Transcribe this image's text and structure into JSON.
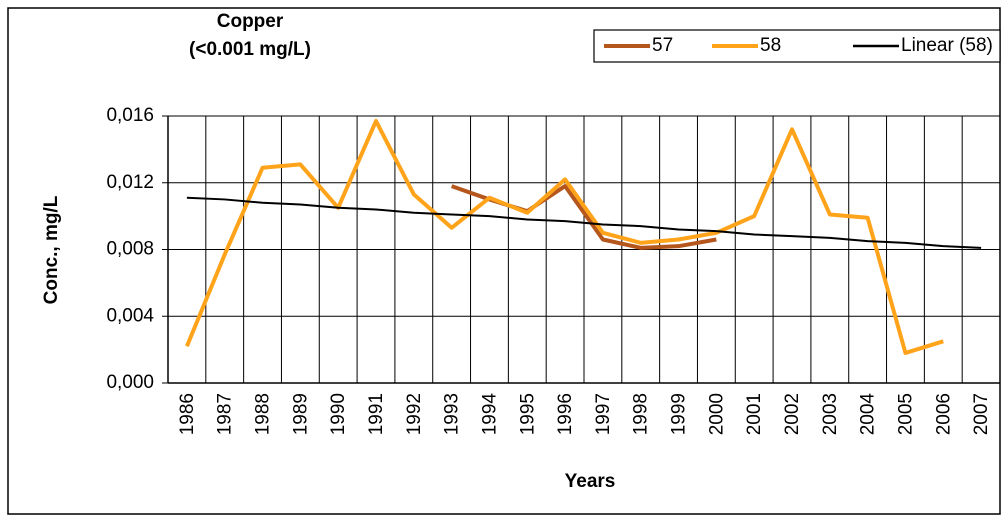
{
  "chart_data": {
    "type": "line",
    "title": "Copper",
    "subtitle": "(<0.001 mg/L)",
    "x_label": "Years",
    "y_label": "Conc., mg/L",
    "categories": [
      "1986",
      "1987",
      "1988",
      "1989",
      "1990",
      "1991",
      "1992",
      "1993",
      "1994",
      "1995",
      "1996",
      "1997",
      "1998",
      "1999",
      "2000",
      "2001",
      "2002",
      "2003",
      "2004",
      "2005",
      "2006",
      "2007"
    ],
    "series": [
      {
        "name": "57",
        "color": "#b5561c",
        "values": [
          null,
          null,
          null,
          null,
          null,
          null,
          null,
          0.0118,
          0.011,
          0.0103,
          0.0118,
          0.0086,
          0.0081,
          0.0082,
          0.0086,
          null,
          null,
          null,
          null,
          null,
          null,
          null
        ]
      },
      {
        "name": "58",
        "color": "#ffa31a",
        "values": [
          0.0022,
          0.0077,
          0.0129,
          0.0131,
          0.0105,
          0.0157,
          0.0113,
          0.0093,
          0.0111,
          0.0102,
          0.0122,
          0.009,
          0.0084,
          0.0086,
          0.009,
          0.01,
          0.0152,
          0.0101,
          0.0099,
          0.0018,
          0.0025,
          null
        ]
      },
      {
        "name": "Linear (58)",
        "color": "#000000",
        "values": [
          0.0111,
          0.011,
          0.0108,
          0.0107,
          0.0105,
          0.0104,
          0.0102,
          0.0101,
          0.01,
          0.0098,
          0.0097,
          0.0095,
          0.0094,
          0.0092,
          0.0091,
          0.0089,
          0.0088,
          0.0087,
          0.0085,
          0.0084,
          0.0082,
          0.0081
        ]
      }
    ],
    "ylim": [
      0,
      0.016
    ],
    "yticks": [
      {
        "value": 0,
        "label": "0,000"
      },
      {
        "value": 0.004,
        "label": "0,004"
      },
      {
        "value": 0.008,
        "label": "0,008"
      },
      {
        "value": 0.012,
        "label": "0,012"
      },
      {
        "value": 0.016,
        "label": "0,016"
      }
    ],
    "grid": true,
    "legend": "top-right"
  }
}
